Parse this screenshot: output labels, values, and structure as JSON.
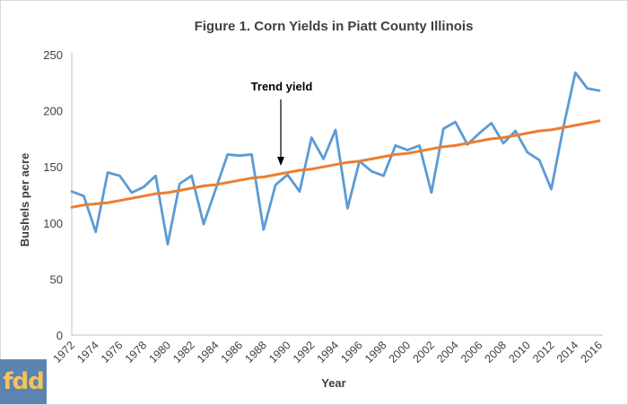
{
  "chart_data": {
    "type": "line",
    "title": "Figure 1. Corn Yields in Piatt County Illinois",
    "xlabel": "Year",
    "ylabel": "Bushels per acre",
    "ylim": [
      0,
      250
    ],
    "yticks": [
      0,
      50,
      100,
      150,
      200,
      250
    ],
    "xlim": [
      1972,
      2016
    ],
    "xticks": [
      1972,
      1974,
      1976,
      1978,
      1980,
      1982,
      1984,
      1986,
      1988,
      1990,
      1992,
      1994,
      1996,
      1998,
      2000,
      2002,
      2004,
      2006,
      2008,
      2010,
      2012,
      2014,
      2016
    ],
    "grid": false,
    "annotation": "Trend yield",
    "series": [
      {
        "color": "#5b9bd5",
        "x": [
          1972,
          1973,
          1974,
          1975,
          1976,
          1977,
          1978,
          1979,
          1980,
          1981,
          1982,
          1983,
          1984,
          1985,
          1986,
          1987,
          1988,
          1989,
          1990,
          1991,
          1992,
          1993,
          1994,
          1995,
          1996,
          1997,
          1998,
          1999,
          2000,
          2001,
          2002,
          2003,
          2004,
          2005,
          2006,
          2007,
          2008,
          2009,
          2010,
          2011,
          2012,
          2013,
          2014,
          2015,
          2016
        ],
        "y": [
          128,
          124,
          92,
          145,
          142,
          127,
          132,
          142,
          81,
          135,
          142,
          99,
          130,
          161,
          160,
          161,
          94,
          134,
          143,
          128,
          176,
          157,
          183,
          113,
          155,
          146,
          142,
          169,
          165,
          169,
          127,
          184,
          190,
          170,
          180,
          189,
          171,
          182,
          163,
          156,
          130,
          185,
          234,
          220,
          218
        ]
      },
      {
        "color": "#ed7d31",
        "x": [
          1972,
          1973,
          1974,
          1975,
          1976,
          1977,
          1978,
          1979,
          1980,
          1981,
          1982,
          1983,
          1984,
          1985,
          1986,
          1987,
          1988,
          1989,
          1990,
          1991,
          1992,
          1993,
          1994,
          1995,
          1996,
          1997,
          1998,
          1999,
          2000,
          2001,
          2002,
          2003,
          2004,
          2005,
          2006,
          2007,
          2008,
          2009,
          2010,
          2011,
          2012,
          2013,
          2014,
          2015,
          2016
        ],
        "y": [
          114,
          116,
          117,
          118,
          120,
          122,
          124,
          126,
          127,
          129,
          131,
          133,
          134,
          136,
          138,
          140,
          141,
          143,
          145,
          147,
          148,
          150,
          152,
          154,
          155,
          157,
          159,
          161,
          162,
          164,
          166,
          168,
          169,
          171,
          173,
          175,
          176,
          178,
          180,
          182,
          183,
          185,
          187,
          189,
          191
        ]
      }
    ]
  },
  "logo": {
    "text": "fdd"
  }
}
